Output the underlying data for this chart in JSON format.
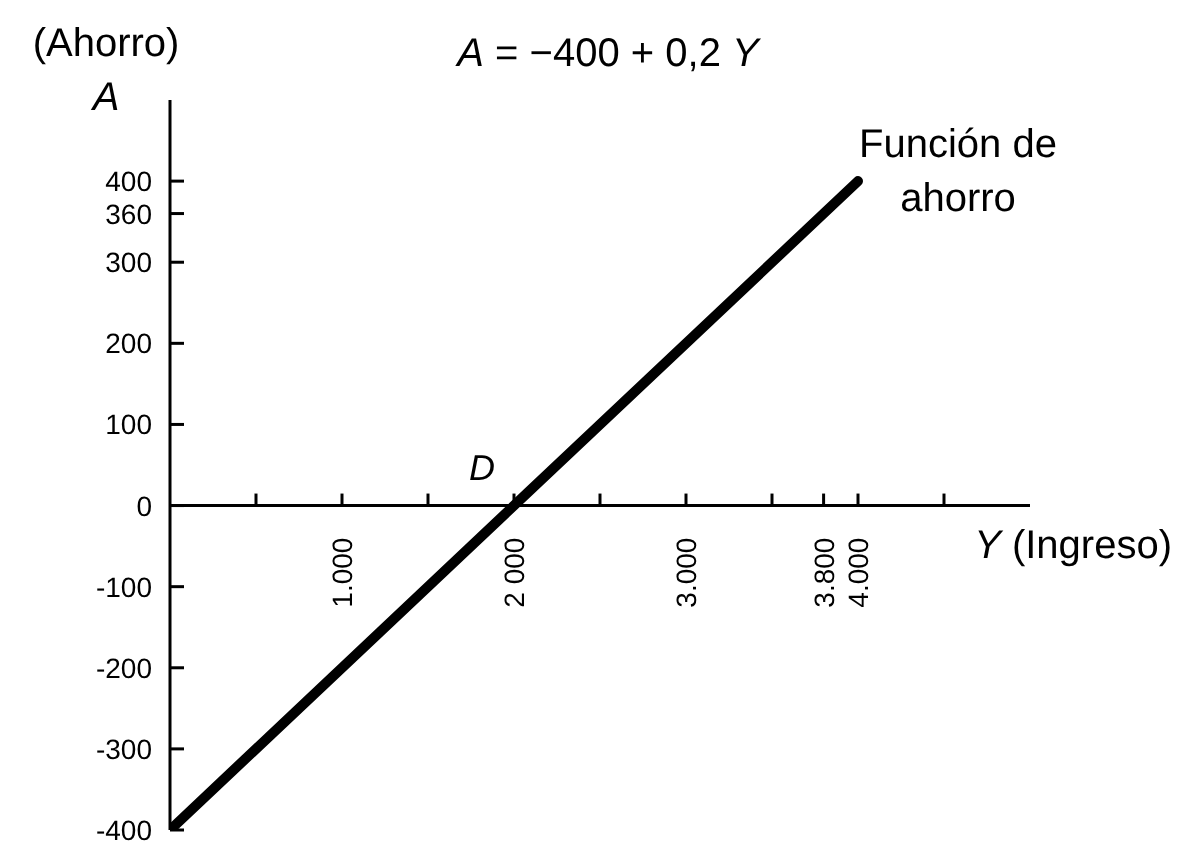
{
  "chart_data": {
    "type": "line",
    "title": "A = −400 + 0,2 Y",
    "xlabel": "Y (Ingreso)",
    "ylabel": "(Ahorro) A",
    "annotations": [
      {
        "text": "D",
        "x": 2000,
        "y": 0
      }
    ],
    "x": [
      0,
      4000
    ],
    "series": [
      {
        "name": "Función de ahorro",
        "color": "#000000",
        "values": [
          -400,
          400
        ]
      }
    ],
    "xlim": [
      0,
      5000
    ],
    "xticks": [
      {
        "value": 500,
        "label": null
      },
      {
        "value": 1000,
        "label": "1.000"
      },
      {
        "value": 1500,
        "label": null
      },
      {
        "value": 2000,
        "label": "2 000"
      },
      {
        "value": 2500,
        "label": null
      },
      {
        "value": 3000,
        "label": "3.000"
      },
      {
        "value": 3500,
        "label": null
      },
      {
        "value": 3800,
        "label": "3.800"
      },
      {
        "value": 4000,
        "label": "4.000"
      },
      {
        "value": 4500,
        "label": null
      }
    ],
    "ylim": [
      -400,
      500
    ],
    "yticks": [
      -400,
      -300,
      -200,
      -100,
      0,
      100,
      200,
      300,
      360,
      400
    ],
    "marker": "none",
    "line_style": "solid"
  }
}
